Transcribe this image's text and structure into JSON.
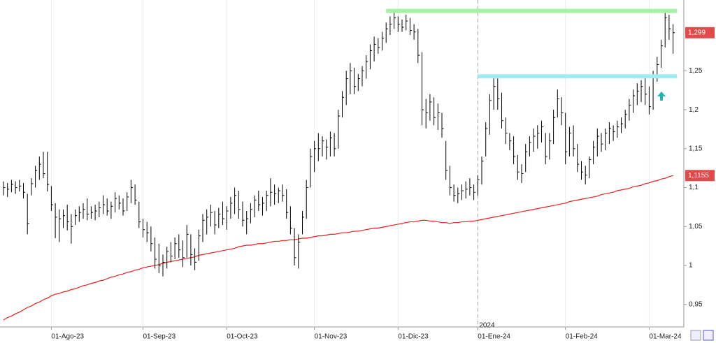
{
  "chart_data": {
    "type": "hlc",
    "ylim": [
      0.921,
      1.341
    ],
    "yticks": [
      {
        "value": 0.95,
        "label": "0,95"
      },
      1,
      {
        "value": 1.05,
        "label": "1,05"
      },
      {
        "value": 1.1,
        "label": "1,1"
      },
      {
        "value": 1.15,
        "label": "1,15"
      },
      {
        "value": 1.2,
        "label": "1,2"
      },
      {
        "value": 1.25,
        "label": "1,25"
      }
    ],
    "xgrid": true,
    "categories": [
      null,
      null,
      null,
      null,
      null,
      null,
      null,
      null,
      null,
      null,
      null,
      null,
      "01-Ago-23",
      null,
      null,
      null,
      null,
      null,
      null,
      null,
      null,
      null,
      null,
      null,
      null,
      null,
      null,
      null,
      null,
      null,
      null,
      null,
      null,
      null,
      null,
      "01-Sep-23",
      null,
      null,
      null,
      null,
      null,
      null,
      null,
      null,
      null,
      null,
      null,
      null,
      null,
      null,
      null,
      null,
      null,
      null,
      null,
      null,
      "01-Oct-23",
      null,
      null,
      null,
      null,
      null,
      null,
      null,
      null,
      null,
      null,
      null,
      null,
      null,
      null,
      null,
      null,
      null,
      null,
      null,
      null,
      null,
      "01-Nov-23",
      null,
      null,
      null,
      null,
      null,
      null,
      null,
      null,
      null,
      null,
      null,
      null,
      null,
      null,
      null,
      null,
      null,
      null,
      null,
      null,
      "01-Dic-23",
      null,
      null,
      null,
      null,
      null,
      null,
      null,
      null,
      null,
      null,
      null,
      null,
      null,
      null,
      null,
      null,
      null,
      null,
      null,
      "01-Ene-24",
      null,
      null,
      null,
      null,
      null,
      null,
      null,
      null,
      null,
      null,
      null,
      null,
      null,
      null,
      null,
      null,
      null,
      null,
      null,
      null,
      null,
      "01-Feb-24",
      null,
      null,
      null,
      null,
      null,
      null,
      null,
      null,
      null,
      null,
      null,
      null,
      null,
      null,
      null,
      null,
      null,
      null,
      null,
      null,
      "01-Mar-24",
      null,
      null,
      null,
      null,
      null,
      null
    ],
    "bars": {
      "color": "#000000",
      "hlc": [
        [
          1.108,
          1.09,
          1.1
        ],
        [
          1.106,
          1.088,
          1.098
        ],
        [
          1.11,
          1.094,
          1.104
        ],
        [
          1.108,
          1.092,
          1.1
        ],
        [
          1.11,
          1.095,
          1.102
        ],
        [
          1.106,
          1.086,
          1.094
        ],
        [
          1.092,
          1.04,
          1.054
        ],
        [
          1.112,
          1.09,
          1.105
        ],
        [
          1.128,
          1.1,
          1.122
        ],
        [
          1.14,
          1.11,
          1.13
        ],
        [
          1.146,
          1.112,
          1.118
        ],
        [
          1.146,
          1.095,
          1.104
        ],
        [
          1.102,
          1.07,
          1.078
        ],
        [
          1.08,
          1.035,
          1.062
        ],
        [
          1.072,
          1.03,
          1.06
        ],
        [
          1.072,
          1.048,
          1.064
        ],
        [
          1.078,
          1.045,
          1.056
        ],
        [
          1.066,
          1.028,
          1.05
        ],
        [
          1.072,
          1.052,
          1.064
        ],
        [
          1.076,
          1.056,
          1.068
        ],
        [
          1.08,
          1.06,
          1.072
        ],
        [
          1.086,
          1.058,
          1.066
        ],
        [
          1.076,
          1.06,
          1.068
        ],
        [
          1.078,
          1.058,
          1.07
        ],
        [
          1.082,
          1.062,
          1.074
        ],
        [
          1.09,
          1.066,
          1.078
        ],
        [
          1.086,
          1.064,
          1.07
        ],
        [
          1.082,
          1.06,
          1.076
        ],
        [
          1.094,
          1.068,
          1.086
        ],
        [
          1.09,
          1.072,
          1.08
        ],
        [
          1.086,
          1.064,
          1.07
        ],
        [
          1.094,
          1.07,
          1.088
        ],
        [
          1.11,
          1.08,
          1.1
        ],
        [
          1.104,
          1.078,
          1.084
        ],
        [
          1.082,
          1.048,
          1.056
        ],
        [
          1.06,
          1.036,
          1.046
        ],
        [
          1.056,
          1.03,
          1.042
        ],
        [
          1.05,
          1.018,
          1.028
        ],
        [
          1.036,
          0.996,
          1.008
        ],
        [
          1.028,
          0.99,
          1.0
        ],
        [
          1.014,
          0.986,
          1.004
        ],
        [
          1.024,
          0.996,
          1.018
        ],
        [
          1.03,
          1.004,
          1.012
        ],
        [
          1.036,
          1.008,
          1.028
        ],
        [
          1.04,
          1.01,
          1.02
        ],
        [
          1.032,
          0.998,
          1.01
        ],
        [
          1.052,
          1.01,
          1.04
        ],
        [
          1.04,
          1.0,
          1.014
        ],
        [
          1.022,
          0.994,
          1.004
        ],
        [
          1.046,
          1.006,
          1.038
        ],
        [
          1.066,
          1.03,
          1.058
        ],
        [
          1.072,
          1.04,
          1.062
        ],
        [
          1.078,
          1.05,
          1.068
        ],
        [
          1.07,
          1.04,
          1.052
        ],
        [
          1.074,
          1.048,
          1.066
        ],
        [
          1.082,
          1.052,
          1.06
        ],
        [
          1.076,
          1.046,
          1.07
        ],
        [
          1.088,
          1.06,
          1.08
        ],
        [
          1.1,
          1.066,
          1.09
        ],
        [
          1.096,
          1.06,
          1.072
        ],
        [
          1.082,
          1.05,
          1.058
        ],
        [
          1.07,
          1.04,
          1.06
        ],
        [
          1.08,
          1.054,
          1.072
        ],
        [
          1.09,
          1.062,
          1.084
        ],
        [
          1.096,
          1.07,
          1.078
        ],
        [
          1.088,
          1.064,
          1.08
        ],
        [
          1.096,
          1.07,
          1.09
        ],
        [
          1.112,
          1.076,
          1.094
        ],
        [
          1.104,
          1.078,
          1.092
        ],
        [
          1.1,
          1.08,
          1.096
        ],
        [
          1.104,
          1.082,
          1.09
        ],
        [
          1.098,
          1.06,
          1.068
        ],
        [
          1.076,
          1.04,
          1.048
        ],
        [
          1.048,
          1.0,
          1.01
        ],
        [
          1.04,
          0.996,
          1.03
        ],
        [
          1.07,
          1.04,
          1.062
        ],
        [
          1.11,
          1.06,
          1.1
        ],
        [
          1.15,
          1.1,
          1.14
        ],
        [
          1.16,
          1.12,
          1.15
        ],
        [
          1.17,
          1.134,
          1.15
        ],
        [
          1.166,
          1.14,
          1.16
        ],
        [
          1.162,
          1.136,
          1.152
        ],
        [
          1.172,
          1.14,
          1.164
        ],
        [
          1.17,
          1.14,
          1.15
        ],
        [
          1.2,
          1.15,
          1.192
        ],
        [
          1.224,
          1.19,
          1.216
        ],
        [
          1.25,
          1.206,
          1.24
        ],
        [
          1.26,
          1.22,
          1.25
        ],
        [
          1.254,
          1.22,
          1.23
        ],
        [
          1.246,
          1.224,
          1.24
        ],
        [
          1.256,
          1.23,
          1.25
        ],
        [
          1.27,
          1.24,
          1.262
        ],
        [
          1.284,
          1.252,
          1.276
        ],
        [
          1.294,
          1.262,
          1.284
        ],
        [
          1.292,
          1.272,
          1.28
        ],
        [
          1.3,
          1.276,
          1.292
        ],
        [
          1.312,
          1.286,
          1.304
        ],
        [
          1.32,
          1.296,
          1.31
        ],
        [
          1.326,
          1.304,
          1.318
        ],
        [
          1.32,
          1.3,
          1.31
        ],
        [
          1.316,
          1.3,
          1.306
        ],
        [
          1.322,
          1.302,
          1.314
        ],
        [
          1.318,
          1.296,
          1.302
        ],
        [
          1.31,
          1.29,
          1.3
        ],
        [
          1.304,
          1.26,
          1.27
        ],
        [
          1.274,
          1.18,
          1.2
        ],
        [
          1.214,
          1.176,
          1.196
        ],
        [
          1.22,
          1.186,
          1.21
        ],
        [
          1.216,
          1.18,
          1.19
        ],
        [
          1.208,
          1.174,
          1.196
        ],
        [
          1.196,
          1.164,
          1.176
        ],
        [
          1.16,
          1.11,
          1.122
        ],
        [
          1.128,
          1.09,
          1.1
        ],
        [
          1.104,
          1.082,
          1.09
        ],
        [
          1.1,
          1.08,
          1.092
        ],
        [
          1.104,
          1.084,
          1.096
        ],
        [
          1.108,
          1.086,
          1.098
        ],
        [
          1.112,
          1.09,
          1.1
        ],
        [
          1.104,
          1.084,
          1.094
        ],
        [
          1.116,
          1.09,
          1.11
        ],
        [
          1.14,
          1.104,
          1.134
        ],
        [
          1.184,
          1.14,
          1.176
        ],
        [
          1.22,
          1.168,
          1.212
        ],
        [
          1.244,
          1.2,
          1.23
        ],
        [
          1.24,
          1.2,
          1.214
        ],
        [
          1.222,
          1.176,
          1.186
        ],
        [
          1.19,
          1.156,
          1.17
        ],
        [
          1.17,
          1.148,
          1.16
        ],
        [
          1.166,
          1.13,
          1.14
        ],
        [
          1.142,
          1.11,
          1.12
        ],
        [
          1.13,
          1.106,
          1.118
        ],
        [
          1.156,
          1.12,
          1.146
        ],
        [
          1.166,
          1.14,
          1.158
        ],
        [
          1.176,
          1.146,
          1.166
        ],
        [
          1.18,
          1.15,
          1.17
        ],
        [
          1.186,
          1.158,
          1.178
        ],
        [
          1.17,
          1.13,
          1.14
        ],
        [
          1.17,
          1.136,
          1.16
        ],
        [
          1.2,
          1.156,
          1.19
        ],
        [
          1.226,
          1.19,
          1.214
        ],
        [
          1.216,
          1.18,
          1.196
        ],
        [
          1.196,
          1.13,
          1.146
        ],
        [
          1.178,
          1.14,
          1.17
        ],
        [
          1.18,
          1.14,
          1.15
        ],
        [
          1.156,
          1.12,
          1.13
        ],
        [
          1.134,
          1.11,
          1.12
        ],
        [
          1.128,
          1.104,
          1.116
        ],
        [
          1.14,
          1.112,
          1.136
        ],
        [
          1.16,
          1.13,
          1.152
        ],
        [
          1.176,
          1.14,
          1.166
        ],
        [
          1.17,
          1.146,
          1.156
        ],
        [
          1.176,
          1.148,
          1.17
        ],
        [
          1.184,
          1.156,
          1.176
        ],
        [
          1.18,
          1.16,
          1.172
        ],
        [
          1.186,
          1.164,
          1.178
        ],
        [
          1.19,
          1.17,
          1.182
        ],
        [
          1.2,
          1.176,
          1.194
        ],
        [
          1.214,
          1.186,
          1.206
        ],
        [
          1.226,
          1.196,
          1.218
        ],
        [
          1.234,
          1.206,
          1.224
        ],
        [
          1.238,
          1.21,
          1.23
        ],
        [
          1.244,
          1.206,
          1.22
        ],
        [
          1.23,
          1.194,
          1.204
        ],
        [
          1.25,
          1.2,
          1.244
        ],
        [
          1.268,
          1.236,
          1.258
        ],
        [
          1.29,
          1.254,
          1.282
        ],
        [
          1.326,
          1.28,
          1.318
        ],
        [
          1.322,
          1.29,
          1.304
        ],
        [
          1.31,
          1.272,
          1.299
        ]
      ]
    },
    "average": {
      "color": "#e82020",
      "values": [
        0.93,
        0.933,
        0.935,
        0.938,
        0.94,
        0.943,
        0.946,
        0.948,
        0.951,
        0.953,
        0.956,
        0.958,
        0.961,
        0.963,
        0.964,
        0.966,
        0.967,
        0.969,
        0.97,
        0.972,
        0.974,
        0.975,
        0.977,
        0.978,
        0.98,
        0.981,
        0.983,
        0.985,
        0.986,
        0.988,
        0.989,
        0.991,
        0.992,
        0.994,
        0.995,
        0.997,
        0.998,
        0.999,
        1.0,
        1.001,
        1.003,
        1.004,
        1.005,
        1.006,
        1.007,
        1.008,
        1.009,
        1.01,
        1.011,
        1.013,
        1.014,
        1.015,
        1.016,
        1.017,
        1.018,
        1.019,
        1.02,
        1.021,
        1.022,
        1.024,
        1.025,
        1.026,
        1.026,
        1.027,
        1.028,
        1.028,
        1.029,
        1.03,
        1.031,
        1.031,
        1.032,
        1.032,
        1.033,
        1.033,
        1.034,
        1.035,
        1.035,
        1.036,
        1.037,
        1.038,
        1.038,
        1.039,
        1.04,
        1.04,
        1.041,
        1.042,
        1.042,
        1.043,
        1.044,
        1.044,
        1.045,
        1.046,
        1.047,
        1.048,
        1.048,
        1.049,
        1.05,
        1.051,
        1.052,
        1.053,
        1.054,
        1.055,
        1.056,
        1.056,
        1.057,
        1.058,
        1.058,
        1.057,
        1.057,
        1.056,
        1.055,
        1.055,
        1.054,
        1.055,
        1.055,
        1.056,
        1.056,
        1.057,
        1.057,
        1.058,
        1.059,
        1.06,
        1.061,
        1.062,
        1.063,
        1.064,
        1.065,
        1.066,
        1.067,
        1.068,
        1.069,
        1.07,
        1.071,
        1.072,
        1.073,
        1.074,
        1.075,
        1.076,
        1.077,
        1.078,
        1.079,
        1.08,
        1.082,
        1.083,
        1.084,
        1.085,
        1.086,
        1.087,
        1.088,
        1.089,
        1.091,
        1.092,
        1.093,
        1.094,
        1.096,
        1.097,
        1.098,
        1.099,
        1.101,
        1.102,
        1.103,
        1.105,
        1.106,
        1.108,
        1.109,
        1.111,
        1.112,
        1.114,
        1.1155
      ]
    },
    "levels": [
      {
        "value": 1.327,
        "color": "#a8f0a8"
      },
      {
        "value": 1.243,
        "color": "#a0ecf4"
      }
    ],
    "price_labels": [
      {
        "value": 1.299,
        "label": "1,299",
        "color": "#e24a4a"
      },
      {
        "value": 1.1155,
        "label": "1,1155",
        "color": "#e24a4a"
      }
    ],
    "annotation": "2024"
  }
}
